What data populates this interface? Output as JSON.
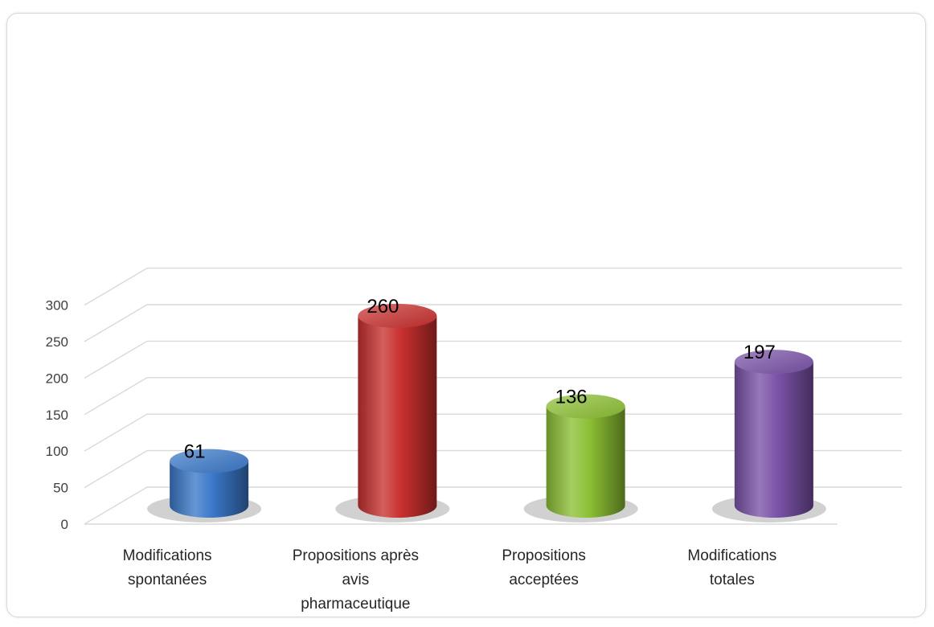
{
  "chart_data": {
    "type": "bar",
    "style": "3d-cylinder",
    "title": "",
    "xlabel": "",
    "ylabel": "",
    "ylim": [
      0,
      300
    ],
    "yticks": [
      0,
      50,
      100,
      150,
      200,
      250,
      300
    ],
    "grid": true,
    "legend": "none",
    "categories": [
      [
        "Modifications",
        "spontanées"
      ],
      [
        "Propositions après",
        "avis",
        "pharmaceutique"
      ],
      [
        "Propositions",
        "acceptées"
      ],
      [
        "Modifications",
        "totales"
      ]
    ],
    "values": [
      61,
      260,
      136,
      197
    ],
    "colors": [
      "#3a78c8",
      "#c8302e",
      "#8cc034",
      "#7a52a8"
    ]
  }
}
